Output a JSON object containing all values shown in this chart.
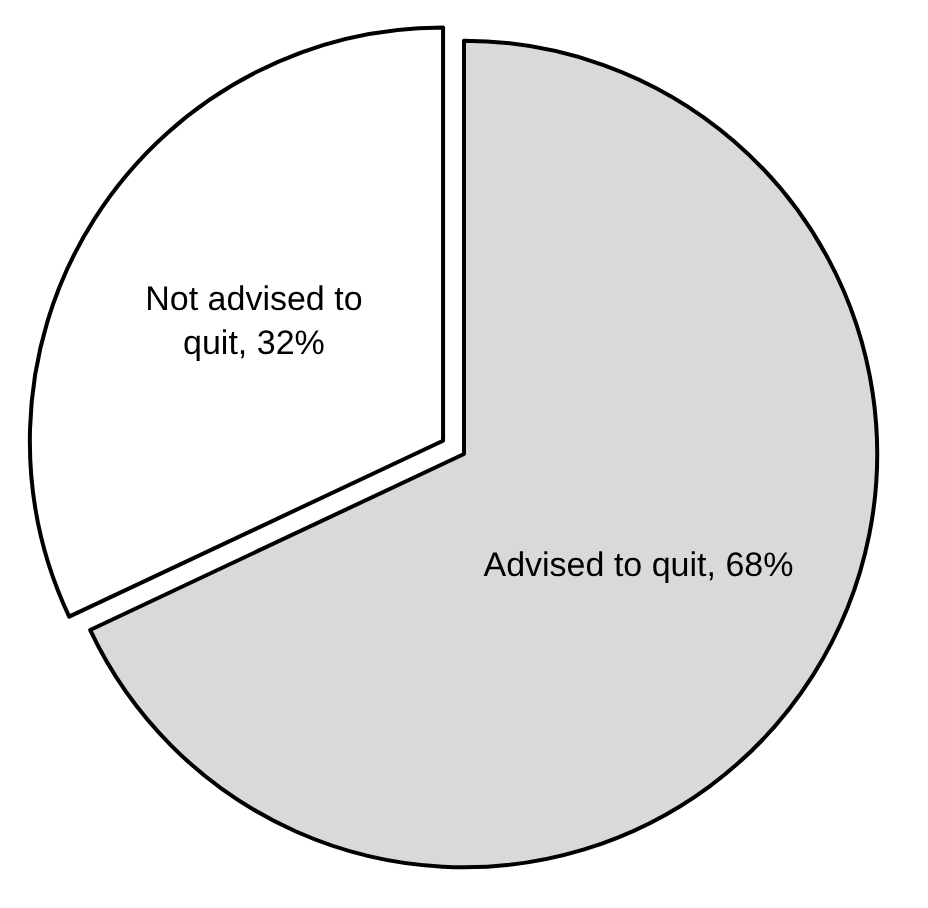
{
  "chart_data": {
    "type": "pie",
    "categories": [
      "Advised to quit",
      "Not advised to quit"
    ],
    "values": [
      68,
      32
    ],
    "value_labels": [
      "68%",
      "32%"
    ],
    "colors": [
      "#d9d9d9",
      "#ffffff"
    ],
    "legend": false
  }
}
